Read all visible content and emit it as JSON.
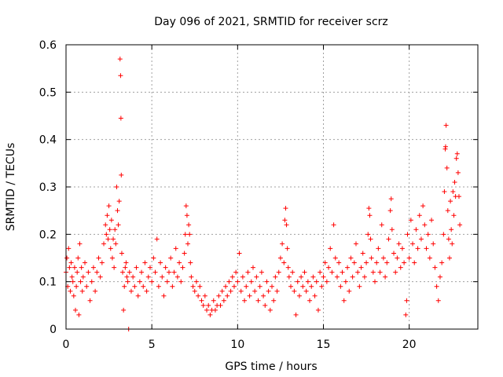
{
  "chart_data": {
    "type": "scatter",
    "title": "Day 096 of 2021, SRMTID for receiver scrz",
    "xlabel": "GPS time / hours",
    "ylabel": "SRMTID / TECUs",
    "xlim": [
      0,
      24
    ],
    "ylim": [
      0,
      0.6
    ],
    "xticks": [
      0,
      5,
      10,
      15,
      20
    ],
    "xtick_labels": [
      "0",
      "5",
      "10",
      "15",
      "20"
    ],
    "yticks": [
      0,
      0.1,
      0.2,
      0.3,
      0.4,
      0.5,
      0.6
    ],
    "ytick_labels": [
      "0",
      "0.1",
      "0.2",
      "0.3",
      "0.4",
      "0.5",
      "0.6"
    ],
    "grid": true,
    "marker": "+",
    "color": "#ff0000",
    "series": [
      {
        "name": "SRMTID",
        "points": [
          [
            0.0,
            0.12
          ],
          [
            0.05,
            0.15
          ],
          [
            0.1,
            0.09
          ],
          [
            0.15,
            0.17
          ],
          [
            0.2,
            0.13
          ],
          [
            0.25,
            0.08
          ],
          [
            0.3,
            0.14
          ],
          [
            0.35,
            0.11
          ],
          [
            0.4,
            0.1
          ],
          [
            0.45,
            0.07
          ],
          [
            0.5,
            0.13
          ],
          [
            0.55,
            0.04
          ],
          [
            0.6,
            0.09
          ],
          [
            0.65,
            0.12
          ],
          [
            0.7,
            0.15
          ],
          [
            0.75,
            0.03
          ],
          [
            0.8,
            0.18
          ],
          [
            0.85,
            0.1
          ],
          [
            0.9,
            0.13
          ],
          [
            0.95,
            0.08
          ],
          [
            1.0,
            0.11
          ],
          [
            1.1,
            0.14
          ],
          [
            1.2,
            0.09
          ],
          [
            1.3,
            0.12
          ],
          [
            1.4,
            0.06
          ],
          [
            1.5,
            0.1
          ],
          [
            1.6,
            0.13
          ],
          [
            1.7,
            0.08
          ],
          [
            1.8,
            0.12
          ],
          [
            1.9,
            0.15
          ],
          [
            2.0,
            0.11
          ],
          [
            2.1,
            0.14
          ],
          [
            2.2,
            0.18
          ],
          [
            2.3,
            0.22
          ],
          [
            2.35,
            0.2
          ],
          [
            2.4,
            0.24
          ],
          [
            2.45,
            0.19
          ],
          [
            2.5,
            0.26
          ],
          [
            2.55,
            0.21
          ],
          [
            2.6,
            0.17
          ],
          [
            2.65,
            0.23
          ],
          [
            2.7,
            0.15
          ],
          [
            2.75,
            0.19
          ],
          [
            2.8,
            0.13
          ],
          [
            2.85,
            0.21
          ],
          [
            2.9,
            0.18
          ],
          [
            2.95,
            0.3
          ],
          [
            3.0,
            0.25
          ],
          [
            3.05,
            0.22
          ],
          [
            3.1,
            0.27
          ],
          [
            3.15,
            0.57
          ],
          [
            3.18,
            0.535
          ],
          [
            3.2,
            0.445
          ],
          [
            3.22,
            0.325
          ],
          [
            3.25,
            0.16
          ],
          [
            3.3,
            0.12
          ],
          [
            3.35,
            0.04
          ],
          [
            3.4,
            0.09
          ],
          [
            3.45,
            0.13
          ],
          [
            3.5,
            0.14
          ],
          [
            3.55,
            0.11
          ],
          [
            3.6,
            0.1
          ],
          [
            3.65,
            0.0
          ],
          [
            3.7,
            0.12
          ],
          [
            3.8,
            0.08
          ],
          [
            3.9,
            0.11
          ],
          [
            4.0,
            0.09
          ],
          [
            4.1,
            0.13
          ],
          [
            4.2,
            0.07
          ],
          [
            4.3,
            0.1
          ],
          [
            4.4,
            0.12
          ],
          [
            4.5,
            0.09
          ],
          [
            4.6,
            0.14
          ],
          [
            4.7,
            0.08
          ],
          [
            4.8,
            0.11
          ],
          [
            4.9,
            0.13
          ],
          [
            5.0,
            0.1
          ],
          [
            5.1,
            0.15
          ],
          [
            5.2,
            0.12
          ],
          [
            5.3,
            0.19
          ],
          [
            5.4,
            0.09
          ],
          [
            5.5,
            0.14
          ],
          [
            5.6,
            0.11
          ],
          [
            5.7,
            0.07
          ],
          [
            5.8,
            0.13
          ],
          [
            5.9,
            0.1
          ],
          [
            6.0,
            0.12
          ],
          [
            6.1,
            0.15
          ],
          [
            6.2,
            0.09
          ],
          [
            6.3,
            0.12
          ],
          [
            6.4,
            0.17
          ],
          [
            6.5,
            0.11
          ],
          [
            6.6,
            0.14
          ],
          [
            6.7,
            0.1
          ],
          [
            6.8,
            0.13
          ],
          [
            6.9,
            0.16
          ],
          [
            6.95,
            0.2
          ],
          [
            7.0,
            0.26
          ],
          [
            7.05,
            0.24
          ],
          [
            7.1,
            0.18
          ],
          [
            7.15,
            0.22
          ],
          [
            7.2,
            0.2
          ],
          [
            7.25,
            0.14
          ],
          [
            7.3,
            0.11
          ],
          [
            7.4,
            0.09
          ],
          [
            7.5,
            0.08
          ],
          [
            7.6,
            0.1
          ],
          [
            7.7,
            0.07
          ],
          [
            7.8,
            0.09
          ],
          [
            7.9,
            0.06
          ],
          [
            8.0,
            0.05
          ],
          [
            8.1,
            0.07
          ],
          [
            8.2,
            0.04
          ],
          [
            8.3,
            0.05
          ],
          [
            8.4,
            0.03
          ],
          [
            8.5,
            0.04
          ],
          [
            8.6,
            0.06
          ],
          [
            8.7,
            0.04
          ],
          [
            8.8,
            0.05
          ],
          [
            8.9,
            0.07
          ],
          [
            9.0,
            0.05
          ],
          [
            9.1,
            0.08
          ],
          [
            9.2,
            0.06
          ],
          [
            9.3,
            0.09
          ],
          [
            9.4,
            0.07
          ],
          [
            9.5,
            0.1
          ],
          [
            9.6,
            0.08
          ],
          [
            9.7,
            0.11
          ],
          [
            9.8,
            0.09
          ],
          [
            9.9,
            0.12
          ],
          [
            10.0,
            0.1
          ],
          [
            10.1,
            0.16
          ],
          [
            10.2,
            0.08
          ],
          [
            10.3,
            0.11
          ],
          [
            10.4,
            0.06
          ],
          [
            10.5,
            0.09
          ],
          [
            10.6,
            0.12
          ],
          [
            10.7,
            0.07
          ],
          [
            10.8,
            0.1
          ],
          [
            10.9,
            0.13
          ],
          [
            11.0,
            0.08
          ],
          [
            11.1,
            0.11
          ],
          [
            11.2,
            0.06
          ],
          [
            11.3,
            0.09
          ],
          [
            11.4,
            0.12
          ],
          [
            11.5,
            0.07
          ],
          [
            11.6,
            0.05
          ],
          [
            11.7,
            0.1
          ],
          [
            11.8,
            0.08
          ],
          [
            11.9,
            0.04
          ],
          [
            12.0,
            0.09
          ],
          [
            12.1,
            0.06
          ],
          [
            12.2,
            0.11
          ],
          [
            12.3,
            0.08
          ],
          [
            12.4,
            0.12
          ],
          [
            12.5,
            0.15
          ],
          [
            12.6,
            0.18
          ],
          [
            12.7,
            0.14
          ],
          [
            12.75,
            0.23
          ],
          [
            12.8,
            0.255
          ],
          [
            12.85,
            0.22
          ],
          [
            12.9,
            0.17
          ],
          [
            12.95,
            0.13
          ],
          [
            13.0,
            0.11
          ],
          [
            13.1,
            0.09
          ],
          [
            13.2,
            0.12
          ],
          [
            13.3,
            0.08
          ],
          [
            13.4,
            0.03
          ],
          [
            13.5,
            0.1
          ],
          [
            13.6,
            0.07
          ],
          [
            13.7,
            0.11
          ],
          [
            13.8,
            0.09
          ],
          [
            13.9,
            0.12
          ],
          [
            14.0,
            0.08
          ],
          [
            14.1,
            0.1
          ],
          [
            14.2,
            0.06
          ],
          [
            14.3,
            0.09
          ],
          [
            14.4,
            0.11
          ],
          [
            14.5,
            0.07
          ],
          [
            14.6,
            0.1
          ],
          [
            14.7,
            0.04
          ],
          [
            14.8,
            0.12
          ],
          [
            14.9,
            0.09
          ],
          [
            15.0,
            0.11
          ],
          [
            15.1,
            0.14
          ],
          [
            15.2,
            0.1
          ],
          [
            15.3,
            0.13
          ],
          [
            15.4,
            0.17
          ],
          [
            15.5,
            0.12
          ],
          [
            15.6,
            0.22
          ],
          [
            15.7,
            0.15
          ],
          [
            15.8,
            0.11
          ],
          [
            15.9,
            0.14
          ],
          [
            16.0,
            0.09
          ],
          [
            16.1,
            0.12
          ],
          [
            16.2,
            0.06
          ],
          [
            16.3,
            0.1
          ],
          [
            16.4,
            0.13
          ],
          [
            16.5,
            0.08
          ],
          [
            16.6,
            0.15
          ],
          [
            16.7,
            0.11
          ],
          [
            16.8,
            0.14
          ],
          [
            16.9,
            0.18
          ],
          [
            17.0,
            0.12
          ],
          [
            17.1,
            0.09
          ],
          [
            17.2,
            0.13
          ],
          [
            17.3,
            0.16
          ],
          [
            17.4,
            0.11
          ],
          [
            17.5,
            0.14
          ],
          [
            17.6,
            0.2
          ],
          [
            17.65,
            0.255
          ],
          [
            17.7,
            0.24
          ],
          [
            17.75,
            0.19
          ],
          [
            17.8,
            0.15
          ],
          [
            17.9,
            0.12
          ],
          [
            18.0,
            0.1
          ],
          [
            18.1,
            0.14
          ],
          [
            18.2,
            0.17
          ],
          [
            18.3,
            0.12
          ],
          [
            18.4,
            0.22
          ],
          [
            18.5,
            0.15
          ],
          [
            18.6,
            0.11
          ],
          [
            18.7,
            0.14
          ],
          [
            18.8,
            0.19
          ],
          [
            18.9,
            0.25
          ],
          [
            18.95,
            0.275
          ],
          [
            19.0,
            0.21
          ],
          [
            19.1,
            0.16
          ],
          [
            19.2,
            0.12
          ],
          [
            19.3,
            0.15
          ],
          [
            19.4,
            0.18
          ],
          [
            19.5,
            0.13
          ],
          [
            19.6,
            0.17
          ],
          [
            19.7,
            0.14
          ],
          [
            19.8,
            0.03
          ],
          [
            19.85,
            0.06
          ],
          [
            19.9,
            0.2
          ],
          [
            20.0,
            0.15
          ],
          [
            20.1,
            0.23
          ],
          [
            20.2,
            0.18
          ],
          [
            20.3,
            0.14
          ],
          [
            20.4,
            0.21
          ],
          [
            20.5,
            0.17
          ],
          [
            20.6,
            0.24
          ],
          [
            20.7,
            0.19
          ],
          [
            20.8,
            0.26
          ],
          [
            20.9,
            0.22
          ],
          [
            21.0,
            0.17
          ],
          [
            21.1,
            0.2
          ],
          [
            21.2,
            0.15
          ],
          [
            21.3,
            0.23
          ],
          [
            21.4,
            0.18
          ],
          [
            21.5,
            0.13
          ],
          [
            21.6,
            0.09
          ],
          [
            21.7,
            0.06
          ],
          [
            21.8,
            0.11
          ],
          [
            21.9,
            0.14
          ],
          [
            22.0,
            0.2
          ],
          [
            22.05,
            0.29
          ],
          [
            22.1,
            0.38
          ],
          [
            22.12,
            0.385
          ],
          [
            22.15,
            0.43
          ],
          [
            22.2,
            0.34
          ],
          [
            22.25,
            0.25
          ],
          [
            22.3,
            0.19
          ],
          [
            22.35,
            0.15
          ],
          [
            22.4,
            0.27
          ],
          [
            22.45,
            0.21
          ],
          [
            22.5,
            0.18
          ],
          [
            22.55,
            0.29
          ],
          [
            22.6,
            0.24
          ],
          [
            22.65,
            0.31
          ],
          [
            22.7,
            0.28
          ],
          [
            22.75,
            0.36
          ],
          [
            22.8,
            0.37
          ],
          [
            22.85,
            0.33
          ],
          [
            22.9,
            0.28
          ],
          [
            22.95,
            0.22
          ]
        ]
      }
    ]
  }
}
